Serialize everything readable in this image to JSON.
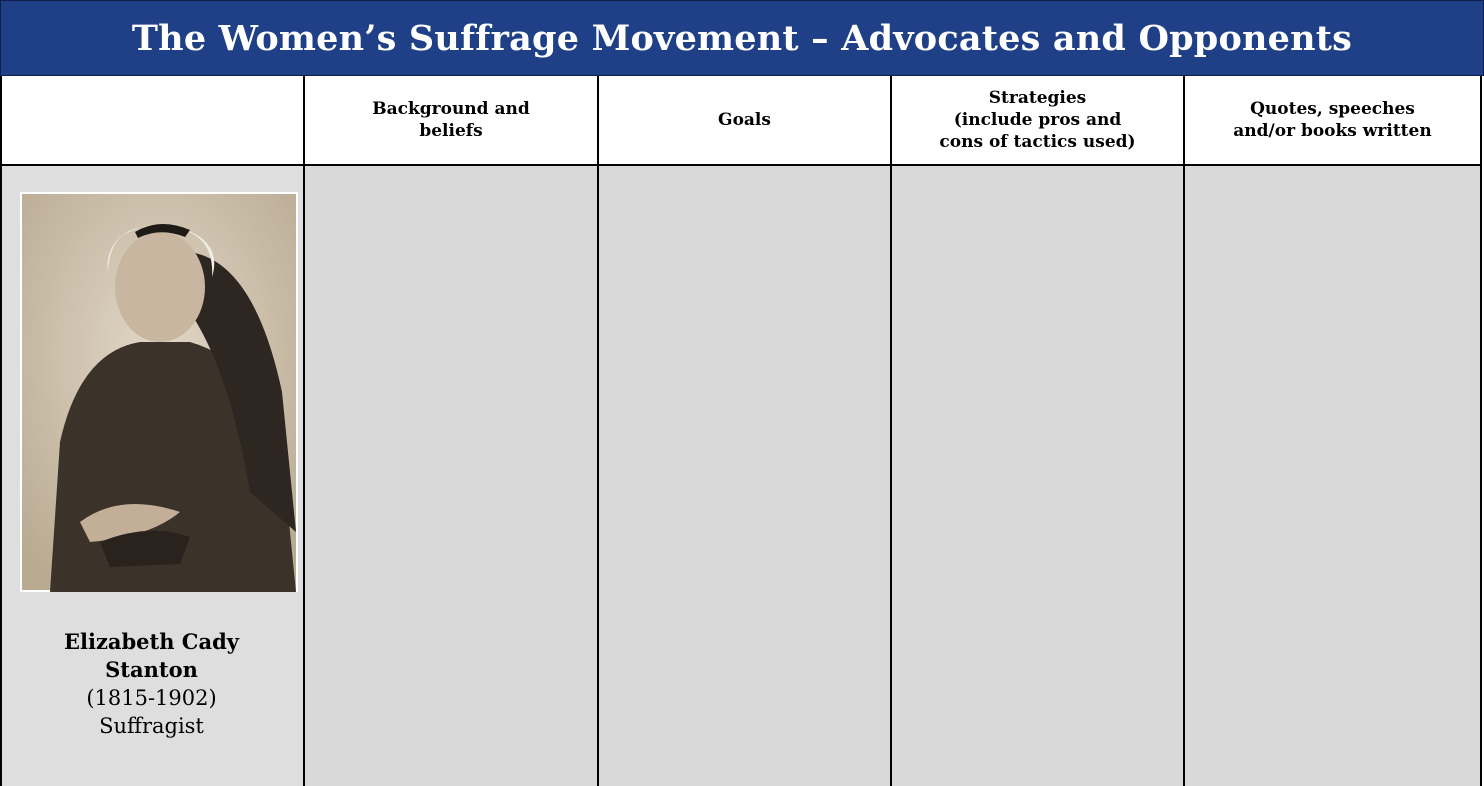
{
  "header": {
    "title": "The Women’s Suffrage Movement – Advocates and Opponents"
  },
  "table": {
    "columns": [
      [
        "Background and",
        "beliefs"
      ],
      [
        "Goals"
      ],
      [
        "Strategies",
        "(include pros and",
        "cons of tactics used)"
      ],
      [
        "Quotes, speeches",
        "and/or books written"
      ]
    ],
    "rows": [
      {
        "name": [
          "Elizabeth Cady",
          "Stanton"
        ],
        "dates": "(1815-1902)",
        "role": "Suffragist"
      }
    ]
  }
}
